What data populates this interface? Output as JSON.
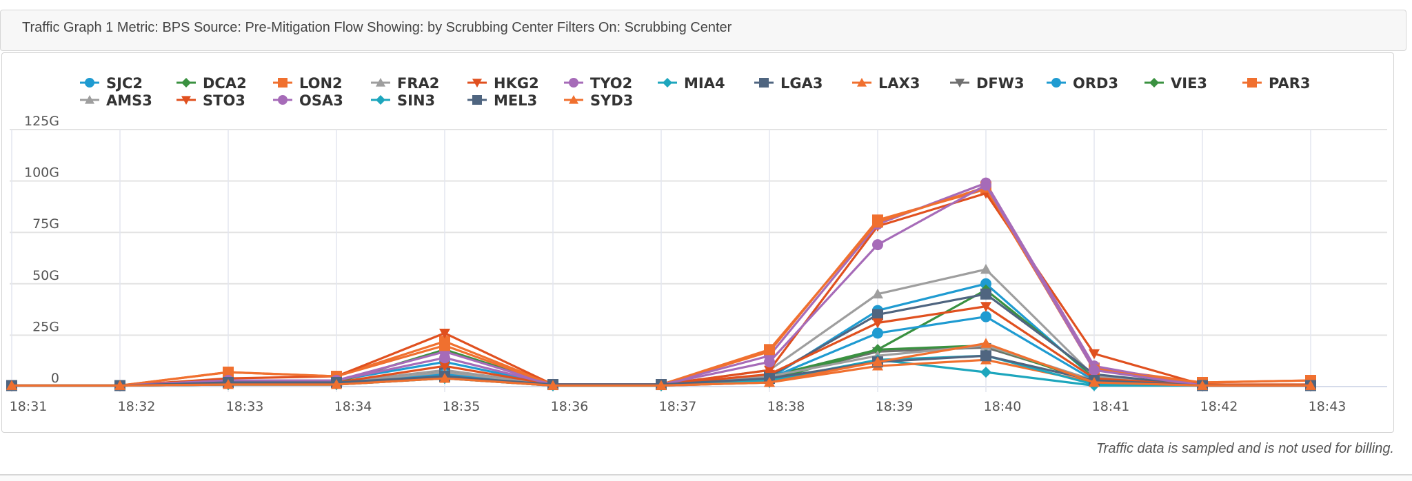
{
  "header": {
    "title": "Traffic Graph 1 Metric: BPS Source: Pre-Mitigation Flow Showing: by Scrubbing Center Filters On: Scrubbing Center"
  },
  "footer": {
    "note": "Traffic data is sampled and is not used for billing."
  },
  "chart_data": {
    "type": "line",
    "title": "",
    "xlabel": "",
    "ylabel": "",
    "ylim": [
      0,
      125
    ],
    "y_unit": "Gbps",
    "grid": true,
    "legend_position": "top",
    "x": [
      "18:31",
      "18:32",
      "18:33",
      "18:34",
      "18:35",
      "18:36",
      "18:37",
      "18:38",
      "18:39",
      "18:40",
      "18:41",
      "18:42",
      "18:43"
    ],
    "y_ticks": [
      {
        "value": 0,
        "label": "0"
      },
      {
        "value": 25,
        "label": "25G"
      },
      {
        "value": 50,
        "label": "50G"
      },
      {
        "value": 75,
        "label": "75G"
      },
      {
        "value": 100,
        "label": "100G"
      },
      {
        "value": 125,
        "label": "125G"
      }
    ],
    "series": [
      {
        "name": "SJC2",
        "color": "#1f9bd1",
        "marker": "circle",
        "values": [
          0.5,
          0.5,
          3,
          3,
          12,
          1,
          1,
          4,
          37,
          50,
          4,
          0.5,
          0.5
        ]
      },
      {
        "name": "DCA2",
        "color": "#3a9140",
        "marker": "diamond",
        "values": [
          0.5,
          0.5,
          2,
          2,
          18,
          1,
          1,
          5,
          18,
          47,
          5,
          0.5,
          0.5
        ]
      },
      {
        "name": "LON2",
        "color": "#f0702f",
        "marker": "square",
        "values": [
          0.5,
          0.5,
          7,
          5,
          22,
          1,
          1,
          17,
          81,
          96,
          9,
          2,
          3
        ]
      },
      {
        "name": "FRA2",
        "color": "#9e9e9e",
        "marker": "triangle",
        "values": [
          0.5,
          0.5,
          2,
          2,
          8,
          1,
          1,
          8,
          45,
          57,
          5,
          0.5,
          0.5
        ]
      },
      {
        "name": "HKG2",
        "color": "#e0501f",
        "marker": "triangle-down",
        "values": [
          0.5,
          0.5,
          4,
          5,
          26,
          1,
          1,
          8,
          78,
          94,
          16,
          1,
          1
        ]
      },
      {
        "name": "TYO2",
        "color": "#a66bb8",
        "marker": "circle",
        "values": [
          0.5,
          0.5,
          3,
          3,
          17,
          1,
          1,
          15,
          79,
          99,
          10,
          0.5,
          0.5
        ]
      },
      {
        "name": "MIA4",
        "color": "#1da6bd",
        "marker": "diamond",
        "values": [
          0.5,
          0.5,
          1,
          1,
          4,
          0.5,
          0.5,
          2,
          13,
          7,
          0.5,
          0.5,
          0.5
        ]
      },
      {
        "name": "LGA3",
        "color": "#4f6580",
        "marker": "square",
        "values": [
          0.5,
          0.5,
          2,
          2,
          7,
          1,
          1,
          5,
          35,
          45,
          6,
          0.5,
          0.5
        ]
      },
      {
        "name": "LAX3",
        "color": "#f0702f",
        "marker": "triangle",
        "values": [
          0.5,
          0.5,
          1,
          1,
          4,
          0.5,
          0.5,
          2,
          10,
          13,
          2,
          0.5,
          0.5
        ]
      },
      {
        "name": "DFW3",
        "color": "#6f6f6f",
        "marker": "triangle-down",
        "values": [
          0.5,
          0.5,
          2,
          2,
          6,
          1,
          1,
          4,
          17,
          19,
          3,
          0.5,
          0.5
        ]
      },
      {
        "name": "ORD3",
        "color": "#1f9bd1",
        "marker": "circle",
        "values": [
          0.5,
          0.5,
          2,
          2,
          6,
          1,
          1,
          4,
          26,
          34,
          3,
          0.5,
          0.5
        ]
      },
      {
        "name": "VIE3",
        "color": "#3a9140",
        "marker": "diamond",
        "values": [
          0.5,
          0.5,
          1,
          1,
          5,
          0.5,
          0.5,
          3,
          18,
          20,
          2,
          0.5,
          0.5
        ]
      },
      {
        "name": "PAR3",
        "color": "#f0702f",
        "marker": "square",
        "values": [
          0.5,
          0.5,
          7,
          5,
          20,
          1,
          1,
          18,
          80,
          97,
          8,
          2,
          3
        ]
      },
      {
        "name": "AMS3",
        "color": "#9e9e9e",
        "marker": "triangle",
        "values": [
          0.5,
          0.5,
          2,
          2,
          7,
          1,
          1,
          5,
          15,
          20,
          3,
          0.5,
          0.5
        ]
      },
      {
        "name": "STO3",
        "color": "#e0501f",
        "marker": "triangle-down",
        "values": [
          0.5,
          0.5,
          2,
          2,
          10,
          1,
          1,
          6,
          31,
          39,
          4,
          0.5,
          0.5
        ]
      },
      {
        "name": "OSA3",
        "color": "#a66bb8",
        "marker": "circle",
        "values": [
          0.5,
          0.5,
          3,
          3,
          14,
          1,
          1,
          12,
          69,
          98,
          8,
          0.5,
          0.5
        ]
      },
      {
        "name": "SIN3",
        "color": "#1da6bd",
        "marker": "diamond",
        "values": [
          0.5,
          0.5,
          1,
          1,
          4,
          0.5,
          0.5,
          3,
          13,
          15,
          1,
          0.5,
          0.5
        ]
      },
      {
        "name": "MEL3",
        "color": "#4f6580",
        "marker": "square",
        "values": [
          0.5,
          0.5,
          2,
          2,
          5,
          1,
          1,
          4,
          12,
          15,
          3,
          0.5,
          0.5
        ]
      },
      {
        "name": "SYD3",
        "color": "#f0702f",
        "marker": "triangle",
        "values": [
          0.5,
          0.5,
          1,
          1,
          4,
          0.5,
          0.5,
          2,
          12,
          21,
          2,
          0.5,
          0.5
        ]
      }
    ]
  }
}
